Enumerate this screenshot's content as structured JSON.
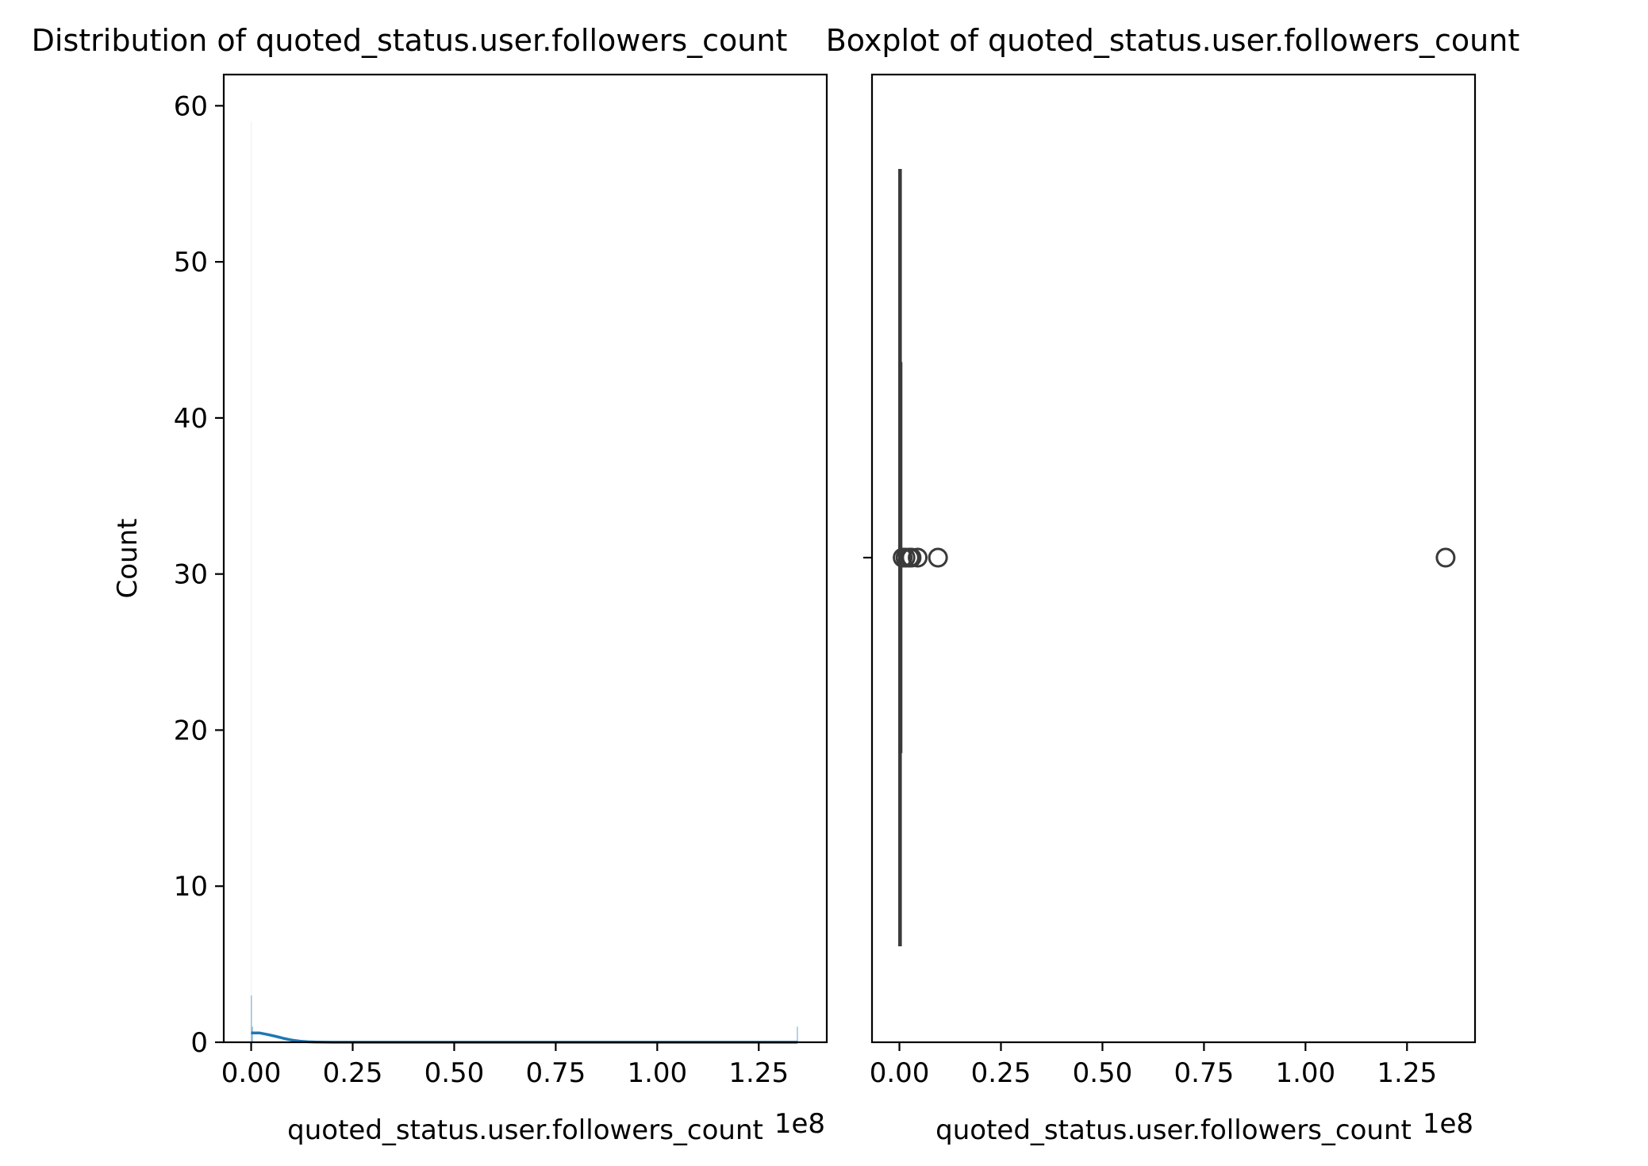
{
  "chart_data": [
    {
      "type": "histogram",
      "title": "Distribution of quoted_status.user.followers_count",
      "xlabel": "quoted_status.user.followers_count",
      "ylabel": "Count",
      "x_offset_label": "1e8",
      "xlim": [
        -0.0675,
        1.4175
      ],
      "ylim": [
        0,
        62
      ],
      "xticks": [
        0.0,
        0.25,
        0.5,
        0.75,
        1.0,
        1.25
      ],
      "xtick_labels": [
        "0.00",
        "0.25",
        "0.50",
        "0.75",
        "1.00",
        "1.25"
      ],
      "yticks": [
        0,
        10,
        20,
        30,
        40,
        50,
        60
      ],
      "ytick_labels": [
        "0",
        "10",
        "20",
        "30",
        "40",
        "50",
        "60"
      ],
      "bars": [
        {
          "x": 0.0,
          "count": 59
        },
        {
          "x": 0.0005,
          "count": 3
        },
        {
          "x": 0.003,
          "count": 1
        },
        {
          "x": 1.345,
          "count": 1
        }
      ],
      "kde": {
        "x": [
          0.0,
          0.02,
          0.04,
          0.06,
          0.08,
          0.1,
          0.12,
          0.14,
          0.16,
          0.18,
          0.2,
          0.3,
          0.5,
          0.8,
          1.1,
          1.345
        ],
        "y": [
          0.6,
          0.6,
          0.5,
          0.38,
          0.25,
          0.14,
          0.07,
          0.03,
          0.015,
          0.005,
          0.0,
          0.0,
          0.0,
          0.0,
          0.0,
          0.0
        ]
      },
      "colors": {
        "bars": "#1f77b4",
        "kde": "#1f77b4"
      }
    },
    {
      "type": "boxplot",
      "title": "Boxplot of quoted_status.user.followers_count",
      "xlabel": "quoted_status.user.followers_count",
      "x_offset_label": "1e8",
      "xlim": [
        -0.0675,
        1.4175
      ],
      "xticks": [
        0.0,
        0.25,
        0.5,
        0.75,
        1.0,
        1.25
      ],
      "xtick_labels": [
        "0.00",
        "0.25",
        "0.50",
        "0.75",
        "1.00",
        "1.25"
      ],
      "whisker_low": 0.0,
      "q1": 0.0005,
      "median": 0.001,
      "q3": 0.002,
      "whisker_high": 0.004,
      "outliers": [
        0.008,
        0.015,
        0.025,
        0.03,
        0.045,
        0.095,
        1.345
      ],
      "colors": {
        "box": "#3a3a3a"
      }
    }
  ]
}
